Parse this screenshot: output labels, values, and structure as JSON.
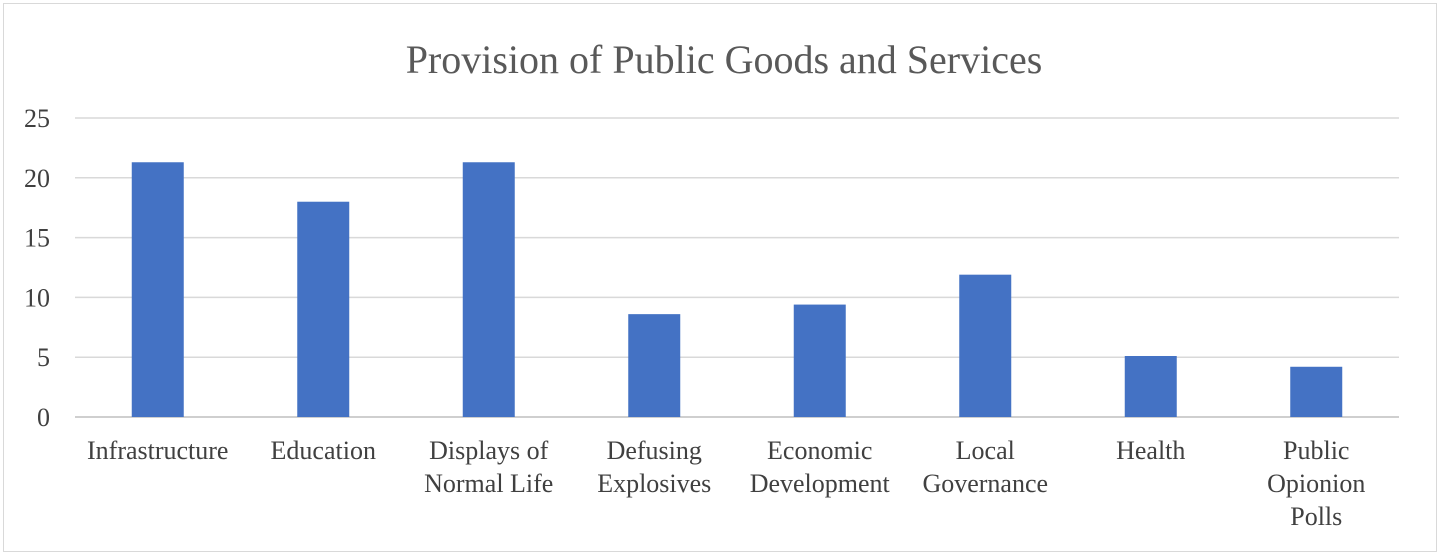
{
  "chart_data": {
    "type": "bar",
    "title": "Provision of Public Goods and Services",
    "xlabel": "",
    "ylabel": "",
    "ylim": [
      0,
      25
    ],
    "yticks": [
      0,
      5,
      10,
      15,
      20,
      25
    ],
    "grid": true,
    "legend": "none",
    "bar_color": "#4472C4",
    "categories": [
      [
        "Infrastructure"
      ],
      [
        "Education"
      ],
      [
        "Displays of",
        "Normal Life"
      ],
      [
        "Defusing",
        "Explosives"
      ],
      [
        "Economic",
        "Development"
      ],
      [
        "Local",
        "Governance"
      ],
      [
        "Health"
      ],
      [
        "Public",
        "Opionion",
        "Polls"
      ]
    ],
    "values": [
      21.3,
      18.0,
      21.3,
      8.6,
      9.4,
      11.9,
      5.1,
      4.2
    ]
  }
}
